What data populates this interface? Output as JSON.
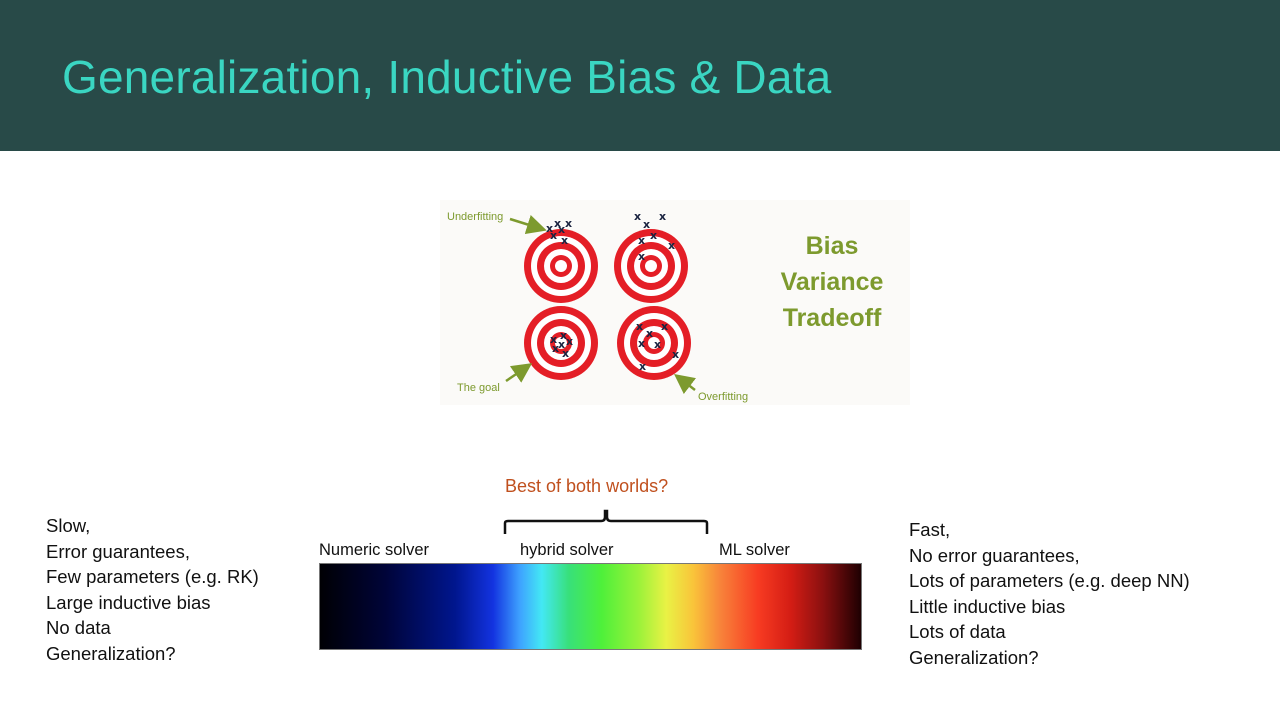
{
  "slide": {
    "title": "Generalization, Inductive Bias & Data"
  },
  "figure": {
    "labels": {
      "underfitting": "Underfitting",
      "the_goal": "The goal",
      "overfitting": "Overfitting"
    },
    "heading_lines": [
      "Bias",
      "Variance",
      "Tradeoff"
    ],
    "colors": {
      "ring_red": "#e41e26",
      "ring_white": "#ffffff",
      "mark": "#1a2340",
      "label_green": "#7d9a2e"
    }
  },
  "spectrum": {
    "best_label": "Best of both worlds?",
    "labels": [
      "Numeric solver",
      "hybrid solver",
      "ML solver"
    ]
  },
  "left_column": {
    "lines": [
      "Slow,",
      "Error guarantees,",
      "Few parameters (e.g. RK)",
      "Large inductive bias",
      "No data",
      "Generalization?"
    ]
  },
  "right_column": {
    "lines": [
      "Fast,",
      "No error guarantees,",
      "Lots of parameters (e.g. deep NN)",
      "Little inductive bias",
      "Lots of data",
      "Generalization?"
    ]
  },
  "colors": {
    "title_bar": "#284a48",
    "title_text": "#3ad6c2",
    "best_label": "#c0501e"
  }
}
